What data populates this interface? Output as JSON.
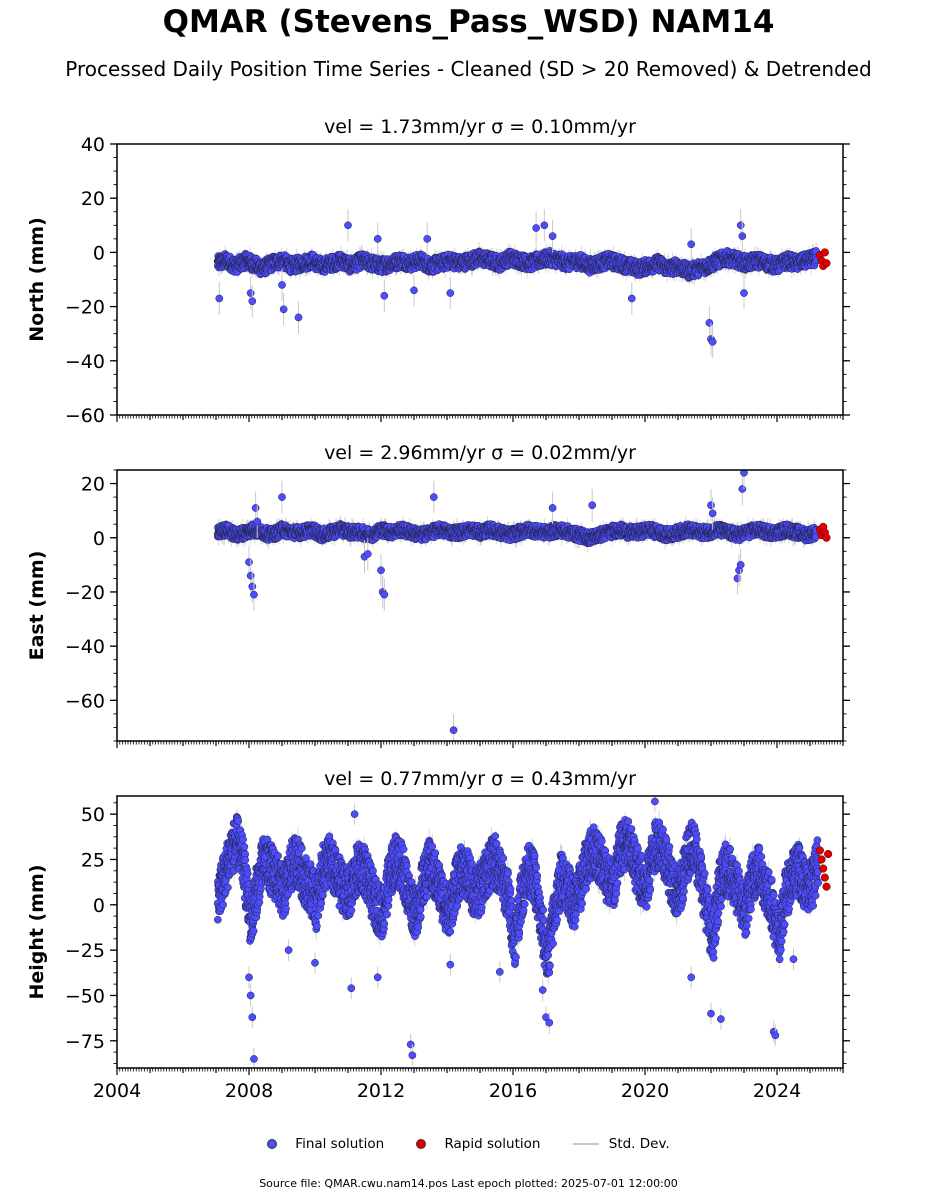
{
  "title": "QMAR (Stevens_Pass_WSD) NAM14",
  "subtitle": "Processed Daily Position Time Series - Cleaned (SD > 20 Removed) & Detrended",
  "legend": {
    "final": "Final solution",
    "rapid": "Rapid solution",
    "stddev": "Std. Dev."
  },
  "footer": "Source file: QMAR.cwu.nam14.pos  Last epoch plotted: 2025-07-01 12:00:00",
  "colors": {
    "final": "#4d4dff",
    "rapid": "#e00000",
    "stddev": "#c8c8c8"
  },
  "chart_data": [
    {
      "type": "scatter",
      "title": "vel = 1.73mm/yr   σ = 0.10mm/yr",
      "ylabel": "North (mm)",
      "xlim": [
        2004,
        2026
      ],
      "ylim": [
        -60,
        40
      ],
      "yticks": [
        -60,
        -40,
        -20,
        0,
        20,
        40
      ],
      "yticklabels": [
        "−60",
        "−40",
        "−20",
        "0",
        "20",
        "40"
      ],
      "series": [
        {
          "name": "Final solution",
          "x": [
            2007.05,
            2007.3,
            2007.6,
            2007.9,
            2008.1,
            2008.4,
            2008.7,
            2009.0,
            2009.3,
            2009.6,
            2009.9,
            2010.2,
            2010.5,
            2010.8,
            2011.1,
            2011.4,
            2011.7,
            2012.0,
            2012.3,
            2012.6,
            2012.9,
            2013.2,
            2013.5,
            2013.8,
            2014.1,
            2014.4,
            2014.7,
            2015.0,
            2015.3,
            2015.6,
            2015.9,
            2016.2,
            2016.5,
            2016.8,
            2017.1,
            2017.4,
            2017.7,
            2018.0,
            2018.3,
            2018.6,
            2018.9,
            2019.2,
            2019.5,
            2019.8,
            2020.1,
            2020.4,
            2020.7,
            2021.0,
            2021.3,
            2021.6,
            2021.9,
            2022.2,
            2022.5,
            2022.8,
            2023.1,
            2023.4,
            2023.7,
            2024.0,
            2024.3,
            2024.6,
            2024.9,
            2025.2
          ],
          "y": [
            -4,
            -3,
            -5,
            -3,
            -4,
            -6,
            -4,
            -3,
            -5,
            -4,
            -3,
            -5,
            -4,
            -3,
            -5,
            -3,
            -4,
            -5,
            -4,
            -3,
            -4,
            -3,
            -5,
            -4,
            -3,
            -4,
            -3,
            -2,
            -3,
            -4,
            -2,
            -3,
            -4,
            -3,
            -2,
            -3,
            -4,
            -3,
            -5,
            -4,
            -3,
            -4,
            -5,
            -6,
            -5,
            -4,
            -6,
            -5,
            -7,
            -6,
            -5,
            -3,
            -2,
            -3,
            -4,
            -3,
            -4,
            -5,
            -3,
            -4,
            -3,
            -2
          ]
        },
        {
          "name": "Final solution outliers",
          "x": [
            2007.1,
            2008.05,
            2008.1,
            2009.0,
            2009.05,
            2009.5,
            2011.0,
            2011.9,
            2012.1,
            2013.0,
            2013.4,
            2014.1,
            2016.7,
            2016.95,
            2017.2,
            2019.6,
            2021.4,
            2021.95,
            2022.0,
            2022.05,
            2022.9,
            2022.95,
            2023.0
          ],
          "y": [
            -17,
            -15,
            -18,
            -12,
            -21,
            -24,
            10,
            5,
            -16,
            -14,
            5,
            -15,
            9,
            10,
            6,
            -17,
            3,
            -26,
            -32,
            -33,
            10,
            6,
            -15
          ]
        },
        {
          "name": "Rapid solution",
          "x": [
            2025.3,
            2025.35,
            2025.4,
            2025.45,
            2025.5
          ],
          "y": [
            -1,
            -3,
            -5,
            0,
            -4
          ]
        }
      ]
    },
    {
      "type": "scatter",
      "title": "vel = 2.96mm/yr   σ = 0.02mm/yr",
      "ylabel": "East (mm)",
      "xlim": [
        2004,
        2026
      ],
      "ylim": [
        -75,
        25
      ],
      "yticks": [
        -60,
        -40,
        -20,
        0,
        20
      ],
      "yticklabels": [
        "−60",
        "−40",
        "−20",
        "0",
        "20"
      ],
      "series": [
        {
          "name": "Final solution",
          "x": [
            2007.05,
            2007.3,
            2007.6,
            2007.9,
            2008.1,
            2008.4,
            2008.7,
            2009.0,
            2009.3,
            2009.6,
            2009.9,
            2010.2,
            2010.5,
            2010.8,
            2011.1,
            2011.4,
            2011.7,
            2012.0,
            2012.3,
            2012.6,
            2012.9,
            2013.2,
            2013.5,
            2013.8,
            2014.1,
            2014.4,
            2014.7,
            2015.0,
            2015.3,
            2015.6,
            2015.9,
            2016.2,
            2016.5,
            2016.8,
            2017.1,
            2017.4,
            2017.7,
            2018.0,
            2018.3,
            2018.6,
            2018.9,
            2019.2,
            2019.5,
            2019.8,
            2020.1,
            2020.4,
            2020.7,
            2021.0,
            2021.3,
            2021.6,
            2021.9,
            2022.2,
            2022.5,
            2022.8,
            2023.1,
            2023.4,
            2023.7,
            2024.0,
            2024.3,
            2024.6,
            2024.9,
            2025.2
          ],
          "y": [
            2,
            3,
            1,
            2,
            3,
            2,
            1,
            3,
            2,
            2,
            3,
            1,
            2,
            3,
            2,
            2,
            1,
            3,
            2,
            3,
            2,
            1,
            2,
            3,
            2,
            2,
            3,
            2,
            3,
            2,
            1,
            2,
            3,
            2,
            2,
            3,
            2,
            1,
            0,
            1,
            2,
            3,
            2,
            2,
            3,
            2,
            1,
            2,
            3,
            2,
            2,
            3,
            2,
            1,
            2,
            3,
            2,
            2,
            3,
            2,
            1,
            2
          ]
        },
        {
          "name": "Final solution outliers",
          "x": [
            2008.0,
            2008.05,
            2008.1,
            2008.15,
            2008.2,
            2008.25,
            2009.0,
            2011.5,
            2011.6,
            2012.0,
            2012.05,
            2012.1,
            2013.6,
            2014.2,
            2017.2,
            2018.4,
            2022.0,
            2022.05,
            2022.8,
            2022.85,
            2022.9,
            2022.95,
            2023.0
          ],
          "y": [
            -9,
            -14,
            -18,
            -21,
            11,
            6,
            15,
            -7,
            -6,
            -12,
            -20,
            -21,
            15,
            -71,
            11,
            12,
            12,
            9,
            -15,
            -12,
            -10,
            18,
            24
          ]
        },
        {
          "name": "Rapid solution",
          "x": [
            2025.3,
            2025.35,
            2025.4,
            2025.45,
            2025.5
          ],
          "y": [
            3,
            1,
            4,
            2,
            0
          ]
        }
      ]
    },
    {
      "type": "scatter",
      "title": "vel = 0.77mm/yr   σ = 0.43mm/yr",
      "ylabel": "Height (mm)",
      "xlim": [
        2004,
        2026
      ],
      "ylim": [
        -90,
        60
      ],
      "yticks": [
        -75,
        -50,
        -25,
        0,
        25,
        50
      ],
      "yticklabels": [
        "−75",
        "−50",
        "−25",
        "0",
        "25",
        "50"
      ],
      "xticks": [
        2004,
        2008,
        2012,
        2016,
        2020,
        2024
      ],
      "xticklabels": [
        "2004",
        "2008",
        "2012",
        "2016",
        "2020",
        "2024"
      ],
      "series": [
        {
          "name": "Final solution",
          "x": [
            2007.05,
            2007.25,
            2007.45,
            2007.65,
            2007.85,
            2008.05,
            2008.25,
            2008.45,
            2008.65,
            2008.85,
            2009.05,
            2009.25,
            2009.45,
            2009.65,
            2009.85,
            2010.05,
            2010.25,
            2010.45,
            2010.65,
            2010.85,
            2011.05,
            2011.25,
            2011.45,
            2011.65,
            2011.85,
            2012.05,
            2012.25,
            2012.45,
            2012.65,
            2012.85,
            2013.05,
            2013.25,
            2013.45,
            2013.65,
            2013.85,
            2014.05,
            2014.25,
            2014.45,
            2014.65,
            2014.85,
            2015.05,
            2015.25,
            2015.45,
            2015.65,
            2015.85,
            2016.05,
            2016.25,
            2016.45,
            2016.65,
            2016.85,
            2017.05,
            2017.25,
            2017.45,
            2017.65,
            2017.85,
            2018.05,
            2018.25,
            2018.45,
            2018.65,
            2018.85,
            2019.05,
            2019.25,
            2019.45,
            2019.65,
            2019.85,
            2020.05,
            2020.25,
            2020.45,
            2020.65,
            2020.85,
            2021.05,
            2021.25,
            2021.45,
            2021.65,
            2021.85,
            2022.05,
            2022.25,
            2022.45,
            2022.65,
            2022.85,
            2023.05,
            2023.25,
            2023.45,
            2023.65,
            2023.85,
            2024.05,
            2024.25,
            2024.45,
            2024.65,
            2024.85,
            2025.05,
            2025.25
          ],
          "y": [
            5,
            15,
            30,
            35,
            20,
            -10,
            10,
            25,
            20,
            15,
            5,
            20,
            25,
            15,
            10,
            0,
            20,
            25,
            15,
            10,
            5,
            18,
            22,
            10,
            0,
            -5,
            15,
            25,
            20,
            5,
            -5,
            10,
            22,
            15,
            5,
            -5,
            10,
            20,
            15,
            5,
            10,
            20,
            25,
            15,
            5,
            -20,
            5,
            20,
            15,
            -10,
            -30,
            -5,
            15,
            10,
            0,
            10,
            25,
            30,
            25,
            15,
            10,
            30,
            35,
            25,
            15,
            10,
            30,
            35,
            25,
            10,
            5,
            25,
            35,
            20,
            0,
            -20,
            10,
            20,
            15,
            5,
            -5,
            15,
            20,
            10,
            0,
            -20,
            5,
            15,
            20,
            10,
            10,
            25
          ]
        },
        {
          "name": "Final solution outliers",
          "x": [
            2008.0,
            2008.05,
            2008.1,
            2008.15,
            2009.2,
            2010.0,
            2011.1,
            2011.2,
            2011.9,
            2012.9,
            2012.95,
            2014.1,
            2015.6,
            2016.9,
            2017.0,
            2017.1,
            2020.3,
            2021.4,
            2022.0,
            2022.3,
            2023.9,
            2023.95,
            2024.5
          ],
          "y": [
            -40,
            -50,
            -62,
            -85,
            -25,
            -32,
            -46,
            50,
            -40,
            -77,
            -83,
            -33,
            -37,
            -47,
            -62,
            -65,
            57,
            -40,
            -60,
            -63,
            -70,
            -72,
            -30
          ]
        },
        {
          "name": "Rapid solution",
          "x": [
            2025.3,
            2025.35,
            2025.4,
            2025.45,
            2025.5,
            2025.55
          ],
          "y": [
            30,
            25,
            20,
            15,
            10,
            28
          ]
        }
      ]
    }
  ]
}
